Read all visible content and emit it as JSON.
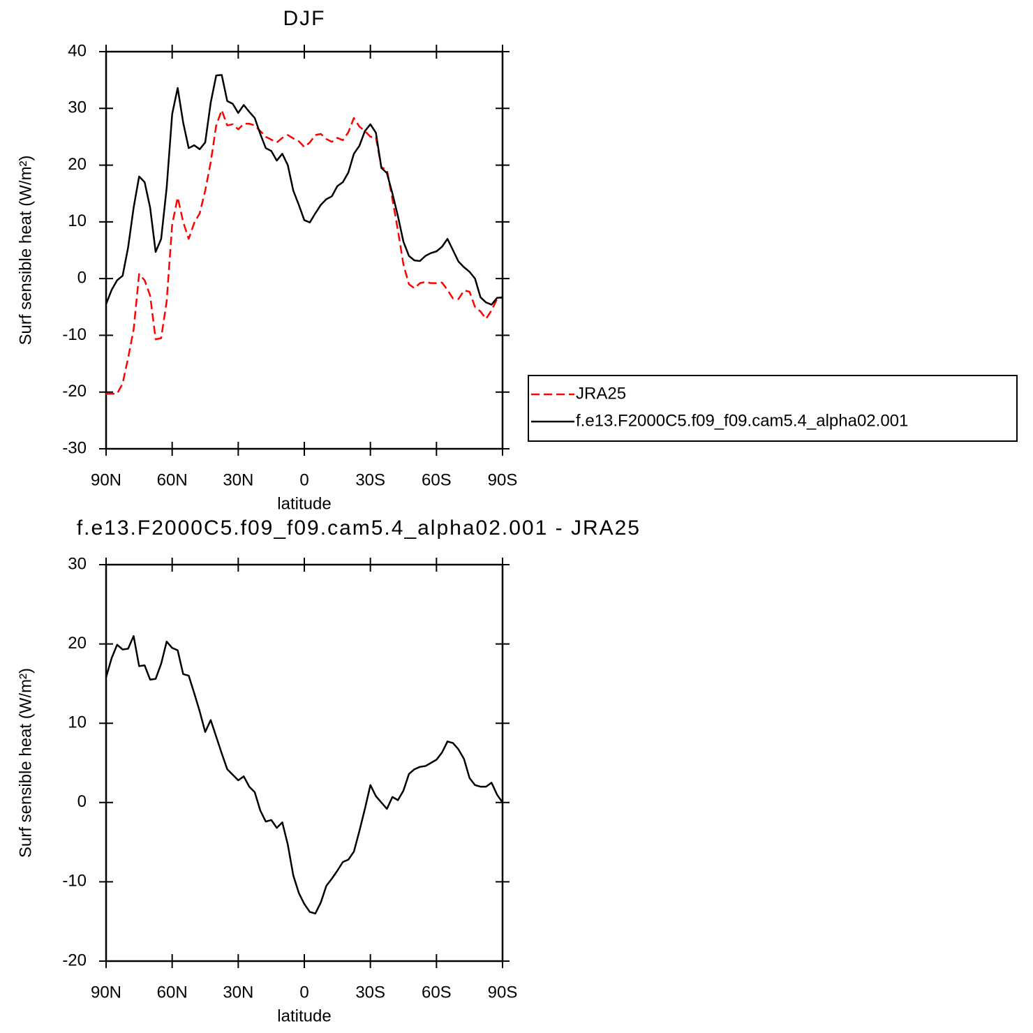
{
  "chart_data": [
    {
      "type": "line",
      "title": "DJF",
      "xlabel": "latitude",
      "ylabel": "Surf sensible heat (W/m²)",
      "x": [
        90,
        87.5,
        85,
        82.5,
        80,
        77.5,
        75,
        72.5,
        70,
        67.5,
        65,
        62.5,
        60,
        57.5,
        55,
        52.5,
        50,
        47.5,
        45,
        42.5,
        40,
        37.5,
        35,
        32.5,
        30,
        27.5,
        25,
        22.5,
        20,
        17.5,
        15,
        12.5,
        10,
        7.5,
        5,
        2.5,
        0,
        -2.5,
        -5,
        -7.5,
        -10,
        -12.5,
        -15,
        -17.5,
        -20,
        -22.5,
        -25,
        -27.5,
        -30,
        -32.5,
        -35,
        -37.5,
        -40,
        -42.5,
        -45,
        -47.5,
        -50,
        -52.5,
        -55,
        -57.5,
        -60,
        -62.5,
        -65,
        -67.5,
        -70,
        -72.5,
        -75,
        -77.5,
        -80,
        -82.5,
        -85,
        -87.5,
        -90
      ],
      "series": [
        {
          "name": "JRA25",
          "color": "#ff0000",
          "style": "dashed",
          "values": [
            -20.3,
            -20.3,
            -20.3,
            -18.5,
            -14,
            -9,
            0.8,
            -0.3,
            -3,
            -10.7,
            -10.5,
            -4,
            9.5,
            14.3,
            10,
            7,
            9.8,
            11.5,
            15.5,
            20.5,
            27,
            29.7,
            27,
            27.2,
            26.3,
            27.3,
            27.3,
            27,
            26,
            25,
            24.5,
            24,
            24.8,
            25.3,
            24.7,
            24.2,
            23.2,
            24,
            25.3,
            25.5,
            24.6,
            24.1,
            24.8,
            24.4,
            25.8,
            28.3,
            26.8,
            26,
            25,
            24.9,
            19.6,
            19.2,
            14,
            8.5,
            2.5,
            -1,
            -1.7,
            -0.8,
            -0.6,
            -0.8,
            -0.8,
            -0.7,
            -2,
            -3.5,
            -3.6,
            -2.1,
            -2.3,
            -5,
            -5.8,
            -7.1,
            -5.6,
            -3.6,
            -3.3
          ]
        },
        {
          "name": "f.e13.F2000C5.f09_f09.cam5.4_alpha02.001",
          "color": "#000000",
          "style": "solid",
          "values": [
            -4.5,
            -2,
            -0.3,
            0.5,
            5.5,
            12.5,
            18,
            17,
            12.5,
            4.7,
            7,
            16,
            29,
            33.6,
            27.5,
            23,
            23.5,
            22.8,
            24,
            31,
            35.8,
            35.9,
            31.3,
            30.8,
            29.2,
            30.6,
            29.4,
            28.3,
            25.5,
            23,
            22.5,
            20.8,
            22,
            20,
            15.5,
            13,
            10.3,
            9.9,
            11.5,
            13,
            14,
            14.5,
            16.3,
            17,
            18.7,
            22,
            23.4,
            26,
            27.2,
            25.7,
            19.5,
            18.6,
            15,
            11,
            6.5,
            4,
            3.2,
            3.1,
            4,
            4.5,
            4.8,
            5.6,
            7,
            5,
            3,
            2,
            1.2,
            0,
            -3.3,
            -4.2,
            -4.6,
            -3.4,
            -3.3
          ]
        }
      ],
      "xlim": [
        90,
        -90
      ],
      "xticks": [
        {
          "value": 90,
          "label": "90N"
        },
        {
          "value": 60,
          "label": "60N"
        },
        {
          "value": 30,
          "label": "30N"
        },
        0,
        {
          "value": -30,
          "label": "30S"
        },
        {
          "value": -60,
          "label": "60S"
        },
        {
          "value": -90,
          "label": "90S"
        }
      ],
      "ylim": [
        -30,
        40
      ],
      "yticks": [
        -30,
        -20,
        -10,
        0,
        10,
        20,
        30,
        40
      ],
      "legend": "right"
    },
    {
      "type": "line",
      "title": "f.e13.F2000C5.f09_f09.cam5.4_alpha02.001 - JRA25",
      "xlabel": "latitude",
      "ylabel": "Surf sensible heat (W/m²)",
      "x": [
        90,
        87.5,
        85,
        82.5,
        80,
        77.5,
        75,
        72.5,
        70,
        67.5,
        65,
        62.5,
        60,
        57.5,
        55,
        52.5,
        50,
        47.5,
        45,
        42.5,
        40,
        37.5,
        35,
        32.5,
        30,
        27.5,
        25,
        22.5,
        20,
        17.5,
        15,
        12.5,
        10,
        7.5,
        5,
        2.5,
        0,
        -2.5,
        -5,
        -7.5,
        -10,
        -12.5,
        -15,
        -17.5,
        -20,
        -22.5,
        -25,
        -27.5,
        -30,
        -32.5,
        -35,
        -37.5,
        -40,
        -42.5,
        -45,
        -47.5,
        -50,
        -52.5,
        -55,
        -57.5,
        -60,
        -62.5,
        -65,
        -67.5,
        -70,
        -72.5,
        -75,
        -77.5,
        -80,
        -82.5,
        -85,
        -87.5,
        -90
      ],
      "series": [
        {
          "color": "#000000",
          "style": "solid",
          "values": [
            15.8,
            18.2,
            19.9,
            19.3,
            19.4,
            21,
            17.2,
            17.3,
            15.5,
            15.6,
            17.5,
            20.3,
            19.5,
            19.2,
            16.2,
            16,
            13.8,
            11.5,
            8.9,
            10.4,
            8.3,
            6.2,
            4.2,
            3.5,
            2.8,
            3.3,
            2,
            1.3,
            -1,
            -2.4,
            -2.2,
            -3.2,
            -2.5,
            -5.3,
            -9.2,
            -11.4,
            -12.8,
            -13.8,
            -14,
            -12.6,
            -10.5,
            -9.6,
            -8.6,
            -7.5,
            -7.2,
            -6.2,
            -3.6,
            -0.8,
            2.2,
            0.8,
            0,
            -0.8,
            0.7,
            0.3,
            1.5,
            3.6,
            4.2,
            4.5,
            4.6,
            5,
            5.4,
            6.3,
            7.7,
            7.5,
            6.7,
            5.5,
            3.1,
            2.2,
            2,
            2,
            2.5,
            1,
            0
          ]
        }
      ],
      "xlim": [
        90,
        -90
      ],
      "xticks": [
        {
          "value": 90,
          "label": "90N"
        },
        {
          "value": 60,
          "label": "60N"
        },
        {
          "value": 30,
          "label": "30N"
        },
        0,
        {
          "value": -30,
          "label": "30S"
        },
        {
          "value": -60,
          "label": "60S"
        },
        {
          "value": -90,
          "label": "90S"
        }
      ],
      "ylim": [
        -20,
        30
      ],
      "yticks": [
        -20,
        -10,
        0,
        10,
        20,
        30
      ]
    }
  ]
}
